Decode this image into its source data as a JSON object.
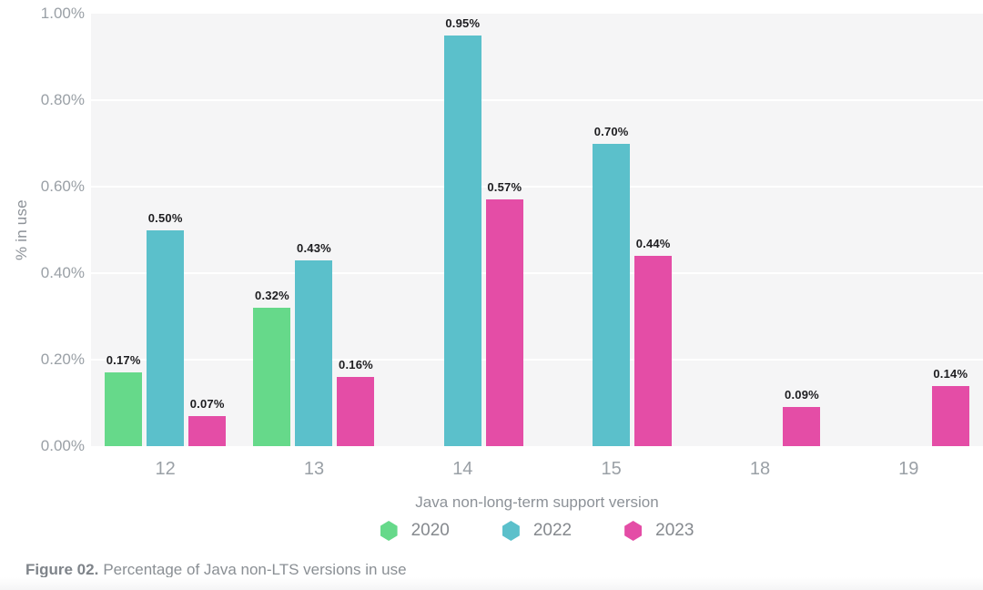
{
  "chart_data": {
    "type": "bar",
    "title": "",
    "xlabel": "Java non-long-term support version",
    "ylabel": "% in use",
    "categories": [
      "12",
      "13",
      "14",
      "15",
      "18",
      "19"
    ],
    "series": [
      {
        "name": "2020",
        "color": "#66d98a",
        "values": [
          0.17,
          0.32,
          null,
          null,
          null,
          null
        ]
      },
      {
        "name": "2022",
        "color": "#5bc0cb",
        "values": [
          0.5,
          0.43,
          0.95,
          0.7,
          null,
          null
        ]
      },
      {
        "name": "2023",
        "color": "#e44da6",
        "values": [
          0.07,
          0.16,
          0.57,
          0.44,
          0.09,
          0.14
        ]
      }
    ],
    "bar_value_labels": [
      "0.17%",
      "0.50%",
      "0.07%",
      "0.32%",
      "0.43%",
      "0.16%",
      "0.95%",
      "0.57%",
      "0.70%",
      "0.44%",
      "0.09%",
      "0.14%"
    ],
    "ylim": [
      0,
      1.0
    ],
    "yticks": [
      "1.00%",
      "0.80%",
      "0.60%",
      "0.40%",
      "0.20%",
      "0.00%"
    ],
    "grid": true,
    "legend_position": "bottom",
    "legend_marker": "hexagon-icon",
    "plot_background": "#f5f5f6",
    "gridline_color": "#ffffff"
  },
  "caption": {
    "prefix": "Figure 02.",
    "text": "Percentage of Java non-LTS versions in use"
  }
}
